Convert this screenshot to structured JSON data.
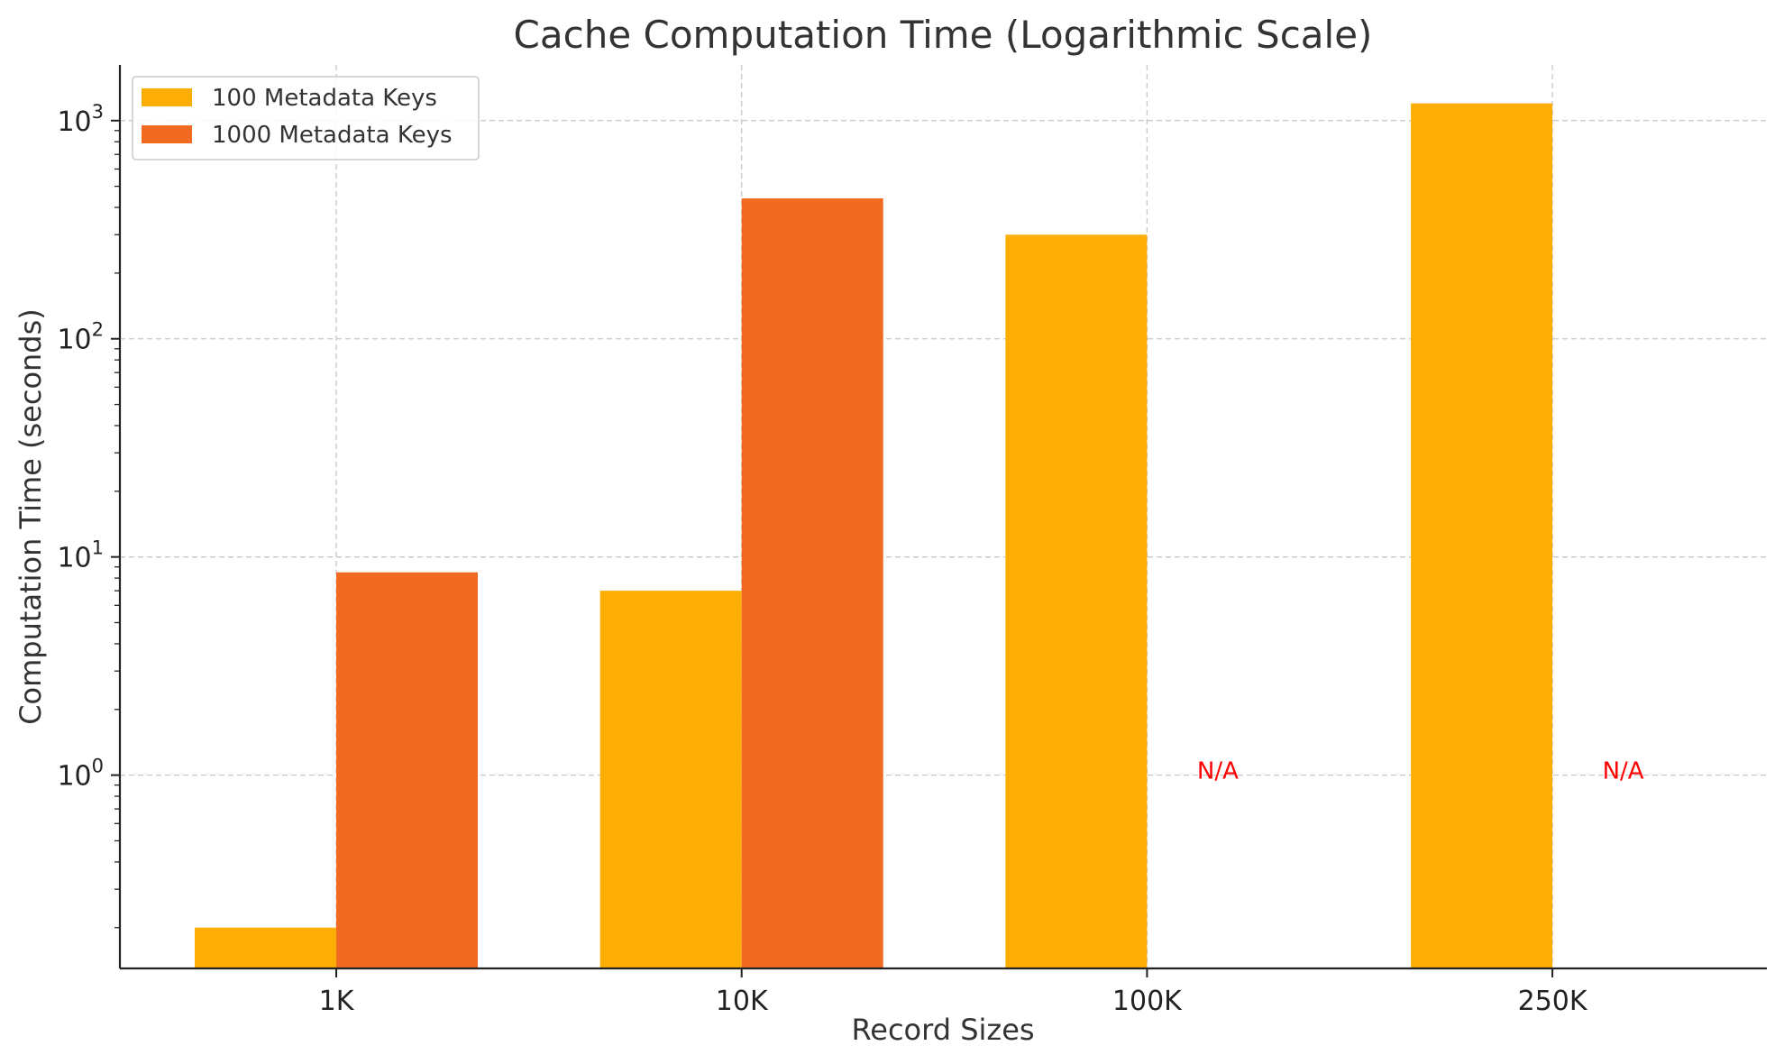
{
  "chart_data": {
    "type": "bar",
    "title": "Cache Computation Time (Logarithmic Scale)",
    "xlabel": "Record Sizes",
    "ylabel": "Computation Time (seconds)",
    "y_scale": "log",
    "ylim": [
      0.13,
      1800
    ],
    "y_ticks": [
      {
        "base": "10",
        "exp": "0",
        "value": 1
      },
      {
        "base": "10",
        "exp": "1",
        "value": 10
      },
      {
        "base": "10",
        "exp": "2",
        "value": 100
      },
      {
        "base": "10",
        "exp": "3",
        "value": 1000
      }
    ],
    "categories": [
      "1K",
      "10K",
      "100K",
      "250K"
    ],
    "series": [
      {
        "name": "100 Metadata Keys",
        "color": "#FDAE04",
        "values": [
          0.2,
          7,
          300,
          1200
        ]
      },
      {
        "name": "1000 Metadata Keys",
        "color": "#F26A22",
        "values": [
          8.5,
          440,
          null,
          null
        ]
      }
    ],
    "annotations": [
      {
        "text": "N/A",
        "category": "100K",
        "series": "1000 Metadata Keys",
        "y": 1.05,
        "color": "#ff0000"
      },
      {
        "text": "N/A",
        "category": "250K",
        "series": "1000 Metadata Keys",
        "y": 1.05,
        "color": "#ff0000"
      }
    ],
    "grid": true,
    "legend_position": "top-left"
  }
}
